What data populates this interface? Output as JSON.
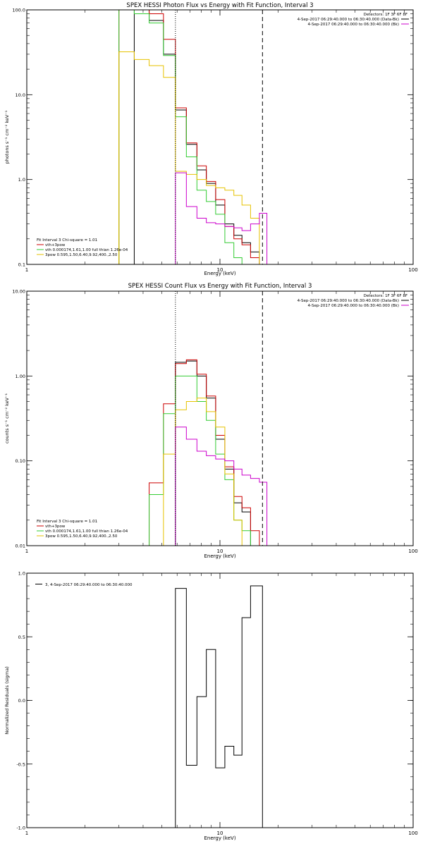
{
  "chart_data": [
    {
      "type": "line",
      "step": true,
      "title": "SPEX HESSI Photon Flux vs Energy with Fit Function, Interval 3",
      "xlabel": "Energy (keV)",
      "ylabel": "photons s⁻¹ cm⁻² keV⁻¹",
      "x_scale": "log",
      "y_scale": "log",
      "xlim": [
        1,
        100
      ],
      "ylim": [
        0.1,
        100
      ],
      "x_ticks": [
        1,
        10,
        100
      ],
      "x_tick_labels": [
        "1",
        "10",
        "100"
      ],
      "y_ticks": [
        0.1,
        1,
        10,
        100
      ],
      "y_tick_labels": [
        "0.1",
        "1.0",
        "10.0",
        "100.0"
      ],
      "grid": false,
      "vlines": [
        {
          "x": 5.88,
          "style": "dotted"
        },
        {
          "x": 16.6,
          "style": "dashed"
        }
      ],
      "legend_left": {
        "position": "bottom-left",
        "heading": "Fit Interval 3   Chi-square = 1.01",
        "entries": [
          {
            "label": "vth+3pow",
            "color": "#cc0000"
          },
          {
            "label": "vth 0.000174,1.61,1.00  full thian 1.26e-04",
            "color": "#33cc33"
          },
          {
            "label": "3pow 0.595,1.50,6.40,9.92,400.,2.50",
            "color": "#e6c200"
          }
        ]
      },
      "legend_right": {
        "position": "top-right",
        "lines": [
          {
            "text": "Detectors: 1F 3F 6F 8F",
            "color": null
          },
          {
            "text": "4-Sep-2017 06:29:40.000 to 06:30:40.000 (Data-Bk)",
            "color": "#000000"
          },
          {
            "text": "4-Sep-2017 06:29:40.000 to 06:30:40.000 (Bk)",
            "color": "#cc00cc"
          }
        ]
      },
      "edges": [
        3.0,
        3.6,
        4.3,
        5.1,
        5.88,
        6.7,
        7.6,
        8.5,
        9.5,
        10.6,
        11.8,
        13.0,
        14.4,
        16.0,
        17.5
      ],
      "series": [
        {
          "name": "Data-Bk",
          "color": "#000000",
          "values": [
            null,
            115,
            75,
            30,
            6.6,
            2.6,
            1.3,
            0.9,
            0.5,
            0.3,
            0.22,
            0.18,
            0.14,
            null
          ]
        },
        {
          "name": "vth+3pow",
          "color": "#cc0000",
          "values": [
            130,
            120,
            90,
            45,
            7.0,
            2.7,
            1.45,
            0.95,
            0.58,
            0.28,
            0.2,
            0.17,
            0.12,
            null
          ]
        },
        {
          "name": "vth",
          "color": "#33cc33",
          "values": [
            110,
            90,
            70,
            29,
            5.5,
            1.85,
            0.75,
            0.55,
            0.39,
            0.18,
            0.12,
            0.1,
            0.1,
            null
          ]
        },
        {
          "name": "3pow",
          "color": "#e6c200",
          "values": [
            32,
            26,
            22,
            16,
            1.25,
            1.15,
            1.0,
            0.85,
            0.8,
            0.75,
            0.65,
            0.5,
            0.35,
            null
          ]
        },
        {
          "name": "Bk",
          "color": "#cc00cc",
          "values": [
            null,
            null,
            null,
            null,
            1.2,
            0.48,
            0.35,
            0.31,
            0.3,
            0.28,
            0.27,
            0.25,
            0.3,
            0.4
          ]
        }
      ]
    },
    {
      "type": "line",
      "step": true,
      "title": "SPEX HESSI Count Flux vs Energy with Fit Function, Interval 3",
      "xlabel": "Energy (keV)",
      "ylabel": "counts s⁻¹ cm⁻² keV⁻¹",
      "x_scale": "log",
      "y_scale": "log",
      "xlim": [
        1,
        100
      ],
      "ylim": [
        0.01,
        10
      ],
      "x_ticks": [
        1,
        10,
        100
      ],
      "x_tick_labels": [
        "1",
        "10",
        "100"
      ],
      "y_ticks": [
        0.01,
        0.1,
        1,
        10
      ],
      "y_tick_labels": [
        "0.01",
        "0.10",
        "1.00",
        "10.00"
      ],
      "grid": false,
      "vlines": [
        {
          "x": 5.88,
          "style": "dotted"
        },
        {
          "x": 16.6,
          "style": "dashed"
        }
      ],
      "legend_left": {
        "position": "bottom-left",
        "heading": "Fit Interval 3   Chi-square = 1.01",
        "entries": [
          {
            "label": "vth+3pow",
            "color": "#cc0000"
          },
          {
            "label": "vth 0.000174,1.61,1.00  full thian 1.26e-04",
            "color": "#33cc33"
          },
          {
            "label": "3pow 0.595,1.50,6.40,9.92,400.,2.50",
            "color": "#e6c200"
          }
        ]
      },
      "legend_right": {
        "position": "top-right",
        "lines": [
          {
            "text": "Detectors: 1F 3F 6F 8F",
            "color": null
          },
          {
            "text": "4-Sep-2017 06:29:40.000 to 06:30:40.000 (Data-Bk)",
            "color": "#000000"
          },
          {
            "text": "4-Sep-2017 06:29:40.000 to 06:30:40.000 (Bk)",
            "color": "#cc00cc"
          }
        ]
      },
      "edges": [
        4.3,
        5.1,
        5.88,
        6.7,
        7.6,
        8.5,
        9.5,
        10.6,
        11.8,
        13.0,
        14.4,
        16.0,
        17.5
      ],
      "series": [
        {
          "name": "Data-Bk",
          "color": "#000000",
          "values": [
            null,
            null,
            1.45,
            1.5,
            1.0,
            0.55,
            0.18,
            0.08,
            0.032,
            0.025,
            null,
            null
          ]
        },
        {
          "name": "vth+3pow",
          "color": "#cc0000",
          "values": [
            0.055,
            0.47,
            1.4,
            1.55,
            1.05,
            0.58,
            0.2,
            0.085,
            0.038,
            0.028,
            0.015,
            null
          ]
        },
        {
          "name": "vth",
          "color": "#33cc33",
          "values": [
            0.04,
            0.36,
            1.0,
            1.0,
            0.5,
            0.3,
            0.12,
            0.06,
            0.02,
            0.015,
            null,
            null
          ]
        },
        {
          "name": "3pow",
          "color": "#e6c200",
          "values": [
            0.01,
            0.12,
            0.4,
            0.5,
            0.55,
            0.38,
            0.25,
            0.07,
            0.02,
            0.01,
            null,
            null
          ]
        },
        {
          "name": "Bk",
          "color": "#cc00cc",
          "values": [
            null,
            null,
            0.25,
            0.18,
            0.13,
            0.115,
            0.105,
            0.1,
            0.08,
            0.068,
            0.062,
            0.056
          ]
        }
      ]
    },
    {
      "type": "line",
      "step": true,
      "title": "",
      "xlabel": "Energy (keV)",
      "ylabel": "Normalized Residuals (sigma)",
      "x_scale": "log",
      "y_scale": "linear",
      "xlim": [
        1,
        100
      ],
      "ylim": [
        -1.0,
        1.0
      ],
      "x_ticks": [
        1,
        10,
        100
      ],
      "x_tick_labels": [
        "1",
        "10",
        "100"
      ],
      "y_ticks": [
        -1.0,
        -0.5,
        0.0,
        0.5,
        1.0
      ],
      "y_tick_labels": [
        "-1.0",
        "-0.5",
        "0.0",
        "0.5",
        "1.0"
      ],
      "grid": false,
      "vlines": [],
      "legend_left": {
        "position": "top-left",
        "heading": "",
        "entries": [
          {
            "label": "3, 4-Sep-2017 06:29:40.000 to 06:30:40.000",
            "color": "#000000"
          }
        ]
      },
      "legend_right": null,
      "edges": [
        5.88,
        6.7,
        7.6,
        8.5,
        9.5,
        10.6,
        11.8,
        13.0,
        14.4,
        16.6
      ],
      "series": [
        {
          "name": "3, 4-Sep-2017 06:29:40.000 to 06:30:40.000",
          "color": "#000000",
          "values": [
            0.88,
            -0.51,
            0.03,
            0.4,
            -0.53,
            -0.36,
            -0.43,
            0.65,
            0.9
          ]
        }
      ],
      "drop_to_axis": true
    }
  ]
}
